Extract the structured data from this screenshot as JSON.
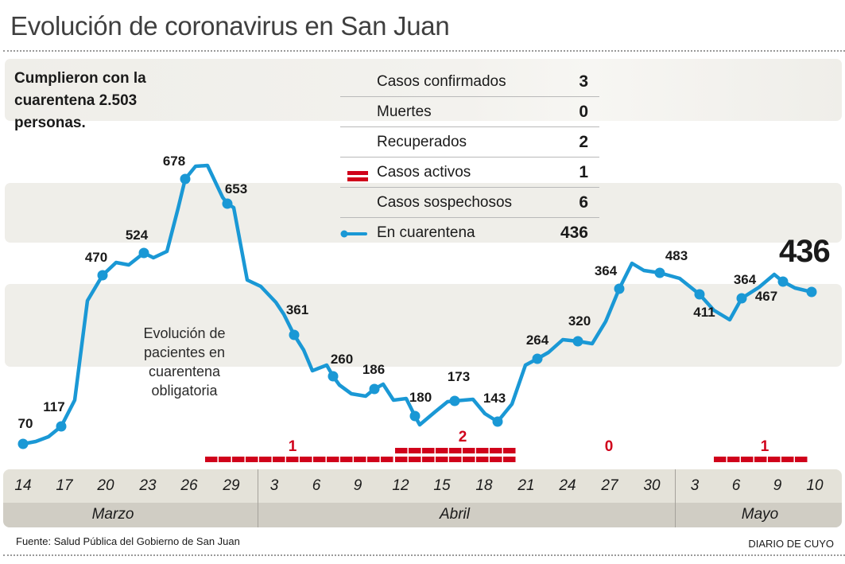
{
  "title": "Evolución de coronavirus en San Juan",
  "summary": {
    "line1": "Cumplieron con la",
    "line2": "cuarentena  2.503",
    "line3": "personas."
  },
  "legend": [
    {
      "label": "Casos confirmados",
      "value": "3",
      "symbol": "none"
    },
    {
      "label": "Muertes",
      "value": "0",
      "symbol": "none"
    },
    {
      "label": "Recuperados",
      "value": "2",
      "symbol": "none"
    },
    {
      "label": "Casos activos",
      "value": "1",
      "symbol": "red-bars-icon"
    },
    {
      "label": "Casos sospechosos",
      "value": "6",
      "symbol": "none"
    },
    {
      "label": "En cuarentena",
      "value": "436",
      "symbol": "blue-line-dot-icon"
    }
  ],
  "inner_note": {
    "line1": "Evolución de",
    "line2": "pacientes en",
    "line3": "cuarentena",
    "line4": "obligatoria"
  },
  "colors": {
    "line": "#1a98d5",
    "active_cases": "#d0021b",
    "band": "#efeee9",
    "axis_days": "#e4e2d9",
    "axis_months": "#d0cdc4"
  },
  "chart_data": {
    "type": "line",
    "title": "Evolución de pacientes en cuarentena obligatoria",
    "xlabel": "",
    "ylabel": "",
    "ylim": [
      0,
      750
    ],
    "grid": false,
    "legend_position": "top-center",
    "x_ticks": [
      {
        "label": "14",
        "month": "Marzo"
      },
      {
        "label": "17",
        "month": "Marzo"
      },
      {
        "label": "20",
        "month": "Marzo"
      },
      {
        "label": "23",
        "month": "Marzo"
      },
      {
        "label": "26",
        "month": "Marzo"
      },
      {
        "label": "29",
        "month": "Marzo"
      },
      {
        "label": "3",
        "month": "Abril"
      },
      {
        "label": "6",
        "month": "Abril"
      },
      {
        "label": "9",
        "month": "Abril"
      },
      {
        "label": "12",
        "month": "Abril"
      },
      {
        "label": "15",
        "month": "Abril"
      },
      {
        "label": "18",
        "month": "Abril"
      },
      {
        "label": "21",
        "month": "Abril"
      },
      {
        "label": "24",
        "month": "Abril"
      },
      {
        "label": "27",
        "month": "Abril"
      },
      {
        "label": "30",
        "month": "Abril"
      },
      {
        "label": "3",
        "month": "Mayo"
      },
      {
        "label": "6",
        "month": "Mayo"
      },
      {
        "label": "9",
        "month": "Mayo"
      },
      {
        "label": "10",
        "month": "Mayo"
      }
    ],
    "months": [
      "Marzo",
      "Abril",
      "Mayo"
    ],
    "series": [
      {
        "name": "En cuarentena",
        "labeled_points": [
          {
            "date": "14 Mar",
            "value": 70
          },
          {
            "date": "17 Mar",
            "value": 117
          },
          {
            "date": "20 Mar",
            "value": 470
          },
          {
            "date": "23 Mar",
            "value": 524
          },
          {
            "date": "26 Mar",
            "value": 678
          },
          {
            "date": "29 Mar",
            "value": 653
          },
          {
            "date": "4 Abr",
            "value": 361
          },
          {
            "date": "8 Abr",
            "value": 260
          },
          {
            "date": "11 Abr",
            "value": 186
          },
          {
            "date": "13 Abr",
            "value": 180
          },
          {
            "date": "16 Abr",
            "value": 173
          },
          {
            "date": "19 Abr",
            "value": 143
          },
          {
            "date": "22 Abr",
            "value": 264
          },
          {
            "date": "25 Abr",
            "value": 320
          },
          {
            "date": "28 Abr",
            "value": 364
          },
          {
            "date": "1 May",
            "value": 483
          },
          {
            "date": "4 May",
            "value": 411
          },
          {
            "date": "7 May",
            "value": 364
          },
          {
            "date": "9 May",
            "value": 467
          },
          {
            "date": "10 May",
            "value": 436
          }
        ]
      }
    ],
    "active_cases": [
      {
        "period": "27 Mar – 11 Abr",
        "value": 1
      },
      {
        "period": "12 Abr – 20 Abr",
        "value": 2
      },
      {
        "period": "21 Abr – 4 May",
        "value": 0
      },
      {
        "period": "5 May – 10 May",
        "value": 1
      }
    ],
    "last_value_highlight": "436"
  },
  "footer": {
    "source": "Fuente: Salud Pública del Gobierno de San Juan",
    "brand": "DIARIO DE CUYO"
  }
}
